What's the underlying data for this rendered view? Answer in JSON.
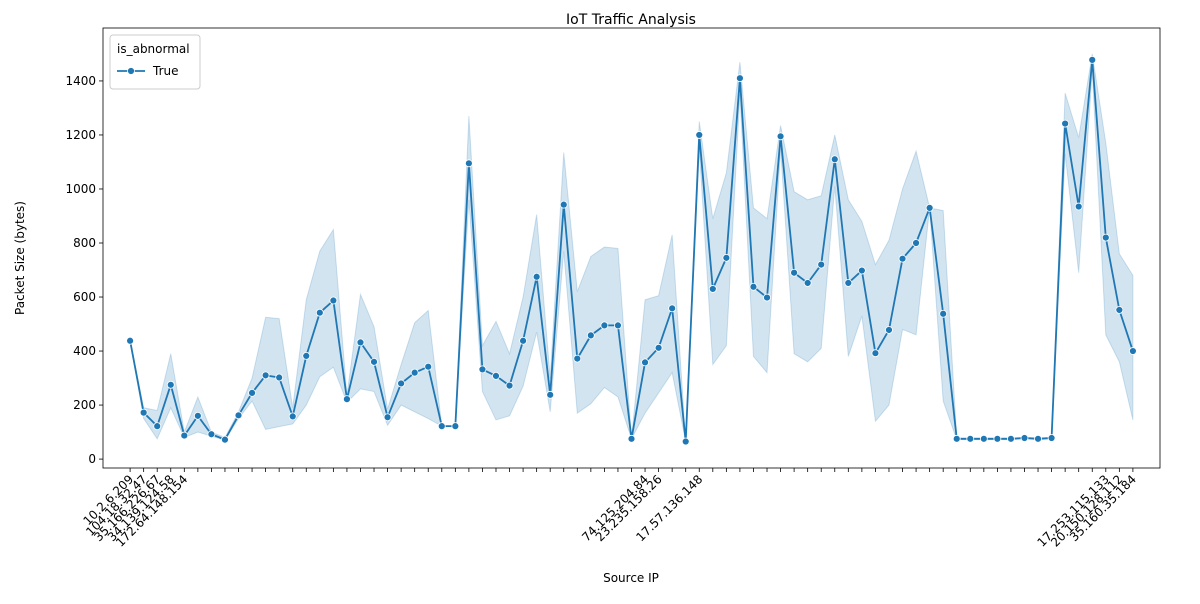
{
  "chart_data": {
    "type": "line",
    "title": "IoT Traffic Analysis",
    "x_label": "Source IP",
    "y_label": "Packet Size (bytes)",
    "categories": [
      "10.2.6.209",
      "104.18.32.47",
      "35.166.226.67",
      "34.139.124.58",
      "172.64.148.154",
      null,
      null,
      null,
      null,
      null,
      null,
      null,
      null,
      null,
      null,
      null,
      null,
      null,
      null,
      null,
      null,
      null,
      null,
      null,
      null,
      null,
      null,
      null,
      null,
      null,
      null,
      null,
      null,
      null,
      null,
      null,
      null,
      null,
      "74.125.204.84",
      "23.235.158.26",
      null,
      null,
      "17.57.136.148",
      null,
      null,
      null,
      null,
      null,
      null,
      null,
      null,
      null,
      null,
      null,
      null,
      null,
      null,
      null,
      null,
      null,
      null,
      null,
      null,
      null,
      null,
      null,
      null,
      null,
      null,
      null,
      null,
      null,
      "17.253.115.133",
      "20.150.128.112",
      "35.160.35.184"
    ],
    "series": [
      {
        "name": "True",
        "color": "#1f77b4",
        "values": [
          438,
          172,
          122,
          275,
          87,
          160,
          92,
          72,
          162,
          245,
          310,
          302,
          158,
          382,
          542,
          587,
          222,
          432,
          360,
          155,
          280,
          320,
          342,
          122,
          122,
          1095,
          332,
          308,
          272,
          438,
          675,
          238,
          942,
          372,
          458,
          495,
          495,
          75,
          358,
          412,
          558,
          65,
          1200,
          630,
          745,
          1410,
          638,
          598,
          1195,
          690,
          652,
          720,
          1110,
          652,
          698,
          392,
          478,
          742,
          800,
          930,
          538,
          75,
          75,
          75,
          75,
          75,
          78,
          75,
          78,
          1242,
          935,
          1478,
          820,
          552,
          400
        ],
        "ci_lower": [
          438,
          150,
          75,
          190,
          80,
          100,
          85,
          70,
          150,
          215,
          110,
          120,
          130,
          200,
          305,
          340,
          210,
          260,
          250,
          125,
          200,
          175,
          150,
          122,
          122,
          960,
          250,
          145,
          160,
          270,
          470,
          175,
          770,
          170,
          205,
          265,
          230,
          75,
          170,
          245,
          320,
          65,
          1150,
          350,
          420,
          1350,
          380,
          320,
          1150,
          390,
          360,
          410,
          1010,
          380,
          530,
          140,
          200,
          480,
          460,
          930,
          215,
          72,
          72,
          72,
          72,
          72,
          75,
          72,
          75,
          1130,
          690,
          1440,
          460,
          360,
          145
        ],
        "ci_upper": [
          438,
          190,
          180,
          390,
          100,
          230,
          100,
          80,
          175,
          300,
          525,
          520,
          190,
          590,
          770,
          850,
          235,
          610,
          490,
          185,
          350,
          505,
          550,
          122,
          122,
          1270,
          420,
          510,
          390,
          600,
          905,
          300,
          1135,
          620,
          750,
          785,
          780,
          75,
          590,
          605,
          830,
          65,
          1250,
          890,
          1060,
          1470,
          930,
          890,
          1235,
          990,
          960,
          975,
          1200,
          960,
          880,
          720,
          810,
          1000,
          1140,
          930,
          920,
          78,
          78,
          78,
          78,
          78,
          81,
          78,
          81,
          1355,
          1190,
          1500,
          1170,
          760,
          680
        ]
      }
    ],
    "ylim": [
      -33,
      1596
    ],
    "yticks": [
      0,
      200,
      400,
      600,
      800,
      1000,
      1200,
      1400
    ],
    "legend_title": "is_abnormal",
    "legend": "upper left"
  }
}
